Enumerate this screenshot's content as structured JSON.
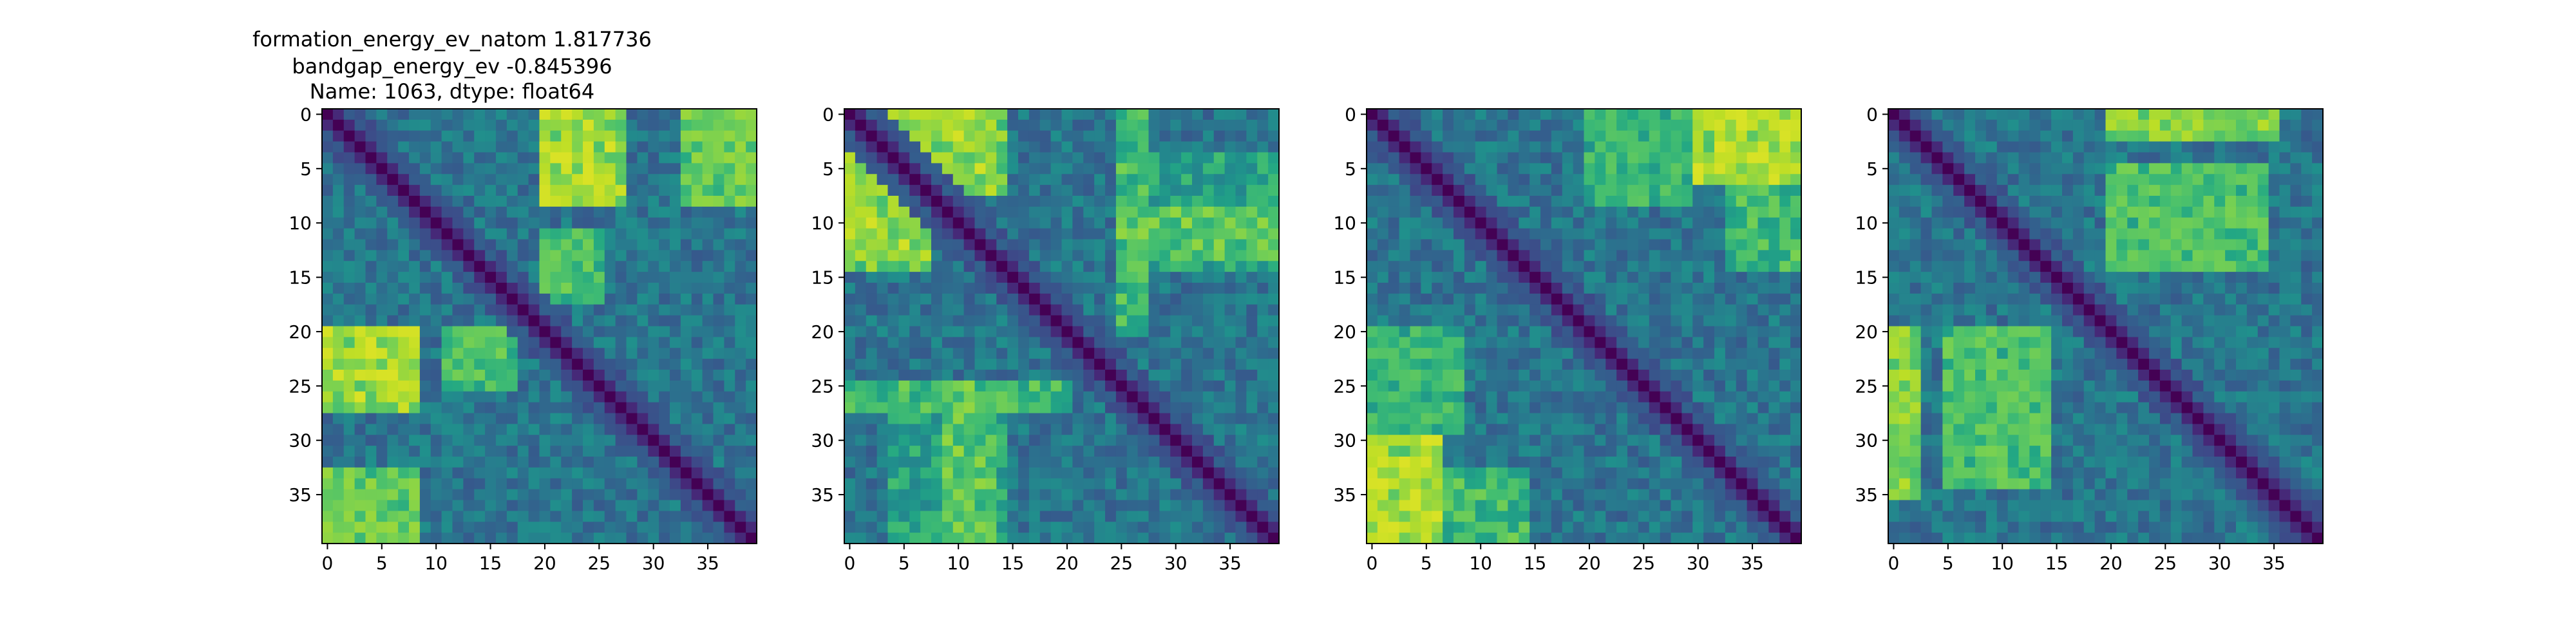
{
  "figure": {
    "title_lines": [
      "formation_energy_ev_natom    1.817736",
      "bandgap_energy_ev          -0.845396",
      "Name: 1063, dtype: float64"
    ]
  },
  "chart_data": [
    {
      "type": "heatmap",
      "matrix_size": 40,
      "colormap": "viridis",
      "diagonal_value": 0.0,
      "xticks": [
        0,
        5,
        10,
        15,
        20,
        25,
        30,
        35
      ],
      "yticks": [
        0,
        5,
        10,
        15,
        20,
        25,
        30,
        35
      ],
      "value_range": [
        0,
        1
      ],
      "blocks": [
        {
          "rows": [
            0,
            8
          ],
          "cols": [
            20,
            27
          ],
          "level": 0.85
        },
        {
          "rows": [
            0,
            8
          ],
          "cols": [
            33,
            39
          ],
          "level": 0.75
        },
        {
          "rows": [
            11,
            17
          ],
          "cols": [
            20,
            25
          ],
          "level": 0.7
        },
        {
          "rows": [
            20,
            25
          ],
          "cols": [
            0,
            8
          ],
          "level": 0.85
        },
        {
          "rows": [
            20,
            25
          ],
          "cols": [
            11,
            17
          ],
          "level": 0.7
        },
        {
          "rows": [
            33,
            39
          ],
          "cols": [
            0,
            8
          ],
          "level": 0.75
        }
      ]
    },
    {
      "type": "heatmap",
      "matrix_size": 40,
      "colormap": "viridis",
      "diagonal_value": 0.0,
      "xticks": [
        0,
        5,
        10,
        15,
        20,
        25,
        30,
        35
      ],
      "yticks": [
        0,
        5,
        10,
        15,
        20,
        25,
        30,
        35
      ],
      "value_range": [
        0,
        1
      ],
      "blocks": [
        {
          "rows": [
            0,
            7
          ],
          "cols": [
            2,
            14
          ],
          "level": 0.8
        },
        {
          "rows": [
            9,
            13
          ],
          "cols": [
            0,
            7
          ],
          "level": 0.85
        },
        {
          "rows": [
            9,
            13
          ],
          "cols": [
            25,
            39
          ],
          "level": 0.75
        },
        {
          "rows": [
            2,
            14
          ],
          "cols": [
            0,
            2
          ],
          "level": 0.8
        },
        {
          "rows": [
            25,
            27
          ],
          "cols": [
            0,
            20
          ],
          "level": 0.7
        },
        {
          "rows": [
            27,
            39
          ],
          "cols": [
            4,
            14
          ],
          "level": 0.6
        }
      ]
    },
    {
      "type": "heatmap",
      "matrix_size": 40,
      "colormap": "viridis",
      "diagonal_value": 0.0,
      "xticks": [
        0,
        5,
        10,
        15,
        20,
        25,
        30,
        35
      ],
      "yticks": [
        0,
        5,
        10,
        15,
        20,
        25,
        30,
        35
      ],
      "value_range": [
        0,
        1
      ],
      "blocks": [
        {
          "rows": [
            0,
            6
          ],
          "cols": [
            30,
            39
          ],
          "level": 0.85
        },
        {
          "rows": [
            0,
            8
          ],
          "cols": [
            20,
            29
          ],
          "level": 0.65
        },
        {
          "rows": [
            30,
            39
          ],
          "cols": [
            0,
            6
          ],
          "level": 0.85
        },
        {
          "rows": [
            20,
            29
          ],
          "cols": [
            0,
            8
          ],
          "level": 0.65
        },
        {
          "rows": [
            33,
            39
          ],
          "cols": [
            7,
            14
          ],
          "level": 0.7
        }
      ]
    },
    {
      "type": "heatmap",
      "matrix_size": 40,
      "colormap": "viridis",
      "diagonal_value": 0.0,
      "xticks": [
        0,
        5,
        10,
        15,
        20,
        25,
        30,
        35
      ],
      "yticks": [
        0,
        5,
        10,
        15,
        20,
        25,
        30,
        35
      ],
      "value_range": [
        0,
        1
      ],
      "blocks": [
        {
          "rows": [
            0,
            2
          ],
          "cols": [
            20,
            35
          ],
          "level": 0.8
        },
        {
          "rows": [
            5,
            14
          ],
          "cols": [
            20,
            34
          ],
          "level": 0.7
        },
        {
          "rows": [
            20,
            35
          ],
          "cols": [
            0,
            2
          ],
          "level": 0.8
        },
        {
          "rows": [
            20,
            34
          ],
          "cols": [
            5,
            14
          ],
          "level": 0.7
        }
      ]
    }
  ]
}
